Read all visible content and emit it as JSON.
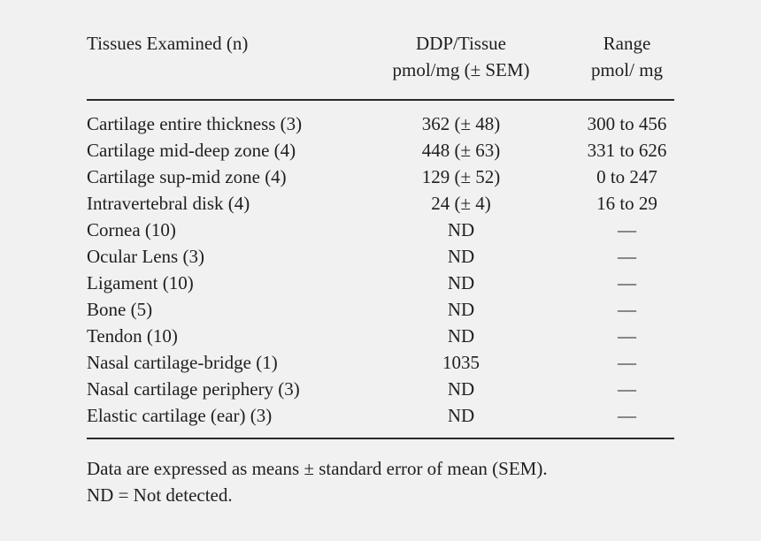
{
  "table": {
    "headers": {
      "tissue": "Tissues Examined (n)",
      "ddp_line1": "DDP/Tissue",
      "ddp_line2": "pmol/mg (± SEM)",
      "range_line1": "Range",
      "range_line2": "pmol/ mg"
    },
    "rows": [
      {
        "tissue": "Cartilage entire thickness (3)",
        "ddp": "362 (± 48)",
        "range": "300 to 456"
      },
      {
        "tissue": "Cartilage mid-deep zone (4)",
        "ddp": "448 (± 63)",
        "range": "331 to 626"
      },
      {
        "tissue": "Cartilage sup-mid zone (4)",
        "ddp": "129 (± 52)",
        "range": "0 to 247"
      },
      {
        "tissue": "Intravertebral disk (4)",
        "ddp": "24 (± 4)",
        "range": "16 to 29"
      },
      {
        "tissue": "Cornea (10)",
        "ddp": "ND",
        "range": "—"
      },
      {
        "tissue": "Ocular Lens (3)",
        "ddp": "ND",
        "range": "—"
      },
      {
        "tissue": "Ligament (10)",
        "ddp": "ND",
        "range": "—"
      },
      {
        "tissue": "Bone (5)",
        "ddp": "ND",
        "range": "—"
      },
      {
        "tissue": "Tendon (10)",
        "ddp": "ND",
        "range": "—"
      },
      {
        "tissue": "Nasal cartilage-bridge (1)",
        "ddp": "1035",
        "range": "—"
      },
      {
        "tissue": "Nasal cartilage periphery (3)",
        "ddp": "ND",
        "range": "—"
      },
      {
        "tissue": "Elastic cartilage (ear) (3)",
        "ddp": "ND",
        "range": "—"
      }
    ]
  },
  "notes": {
    "line1": "Data are expressed as means ± standard error of mean (SEM).",
    "line2": "ND = Not detected."
  }
}
